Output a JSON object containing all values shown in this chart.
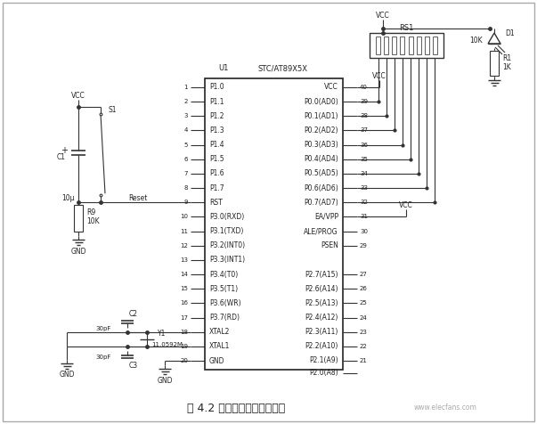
{
  "title": "图 4.2 单片机最小系统原理图",
  "title_fontsize": 9,
  "bg_color": "#ffffff",
  "line_color": "#000000",
  "text_color": "#000000",
  "watermark": "www.elecfans.com",
  "chip_label_left": "U1",
  "chip_label_right": "STC/AT89X5X",
  "left_pins": [
    [
      "1",
      "P1.0"
    ],
    [
      "2",
      "P1.1"
    ],
    [
      "3",
      "P1.2"
    ],
    [
      "4",
      "P1.3"
    ],
    [
      "5",
      "P1.4"
    ],
    [
      "6",
      "P1.5"
    ],
    [
      "7",
      "P1.6"
    ],
    [
      "8",
      "P1.7"
    ],
    [
      "9",
      "RST"
    ],
    [
      "10",
      "P3.0(RXD)"
    ],
    [
      "11",
      "P3.1(TXD)"
    ],
    [
      "12",
      "P3.2(INT0)"
    ],
    [
      "13",
      "P3.3(INT1)"
    ],
    [
      "14",
      "P3.4(T0)"
    ],
    [
      "15",
      "P3.5(T1)"
    ],
    [
      "16",
      "P3.6(WR)"
    ],
    [
      "17",
      "P3.7(RD)"
    ],
    [
      "18",
      "XTAL2"
    ],
    [
      "19",
      "XTAL1"
    ],
    [
      "20",
      "GND"
    ]
  ],
  "right_pins": [
    [
      "40",
      "VCC"
    ],
    [
      "39",
      "P0.0(AD0)"
    ],
    [
      "38",
      "P0.1(AD1)"
    ],
    [
      "37",
      "P0.2(AD2)"
    ],
    [
      "36",
      "P0.3(AD3)"
    ],
    [
      "35",
      "P0.4(AD4)"
    ],
    [
      "34",
      "P0.5(AD5)"
    ],
    [
      "33",
      "P0.6(AD6)"
    ],
    [
      "32",
      "P0.7(AD7)"
    ],
    [
      "31",
      "EA/VPP"
    ],
    [
      "30",
      "ALE/PROG"
    ],
    [
      "29",
      "PSEN"
    ],
    [
      "27",
      "P2.7(A15)"
    ],
    [
      "26",
      "P2.6(A14)"
    ],
    [
      "25",
      "P2.5(A13)"
    ],
    [
      "24",
      "P2.4(A12)"
    ],
    [
      "23",
      "P2.3(A11)"
    ],
    [
      "22",
      "P2.2(A10)"
    ],
    [
      "21",
      "P2.1(A9)"
    ],
    [
      "",
      "P2.0(A8)"
    ]
  ]
}
